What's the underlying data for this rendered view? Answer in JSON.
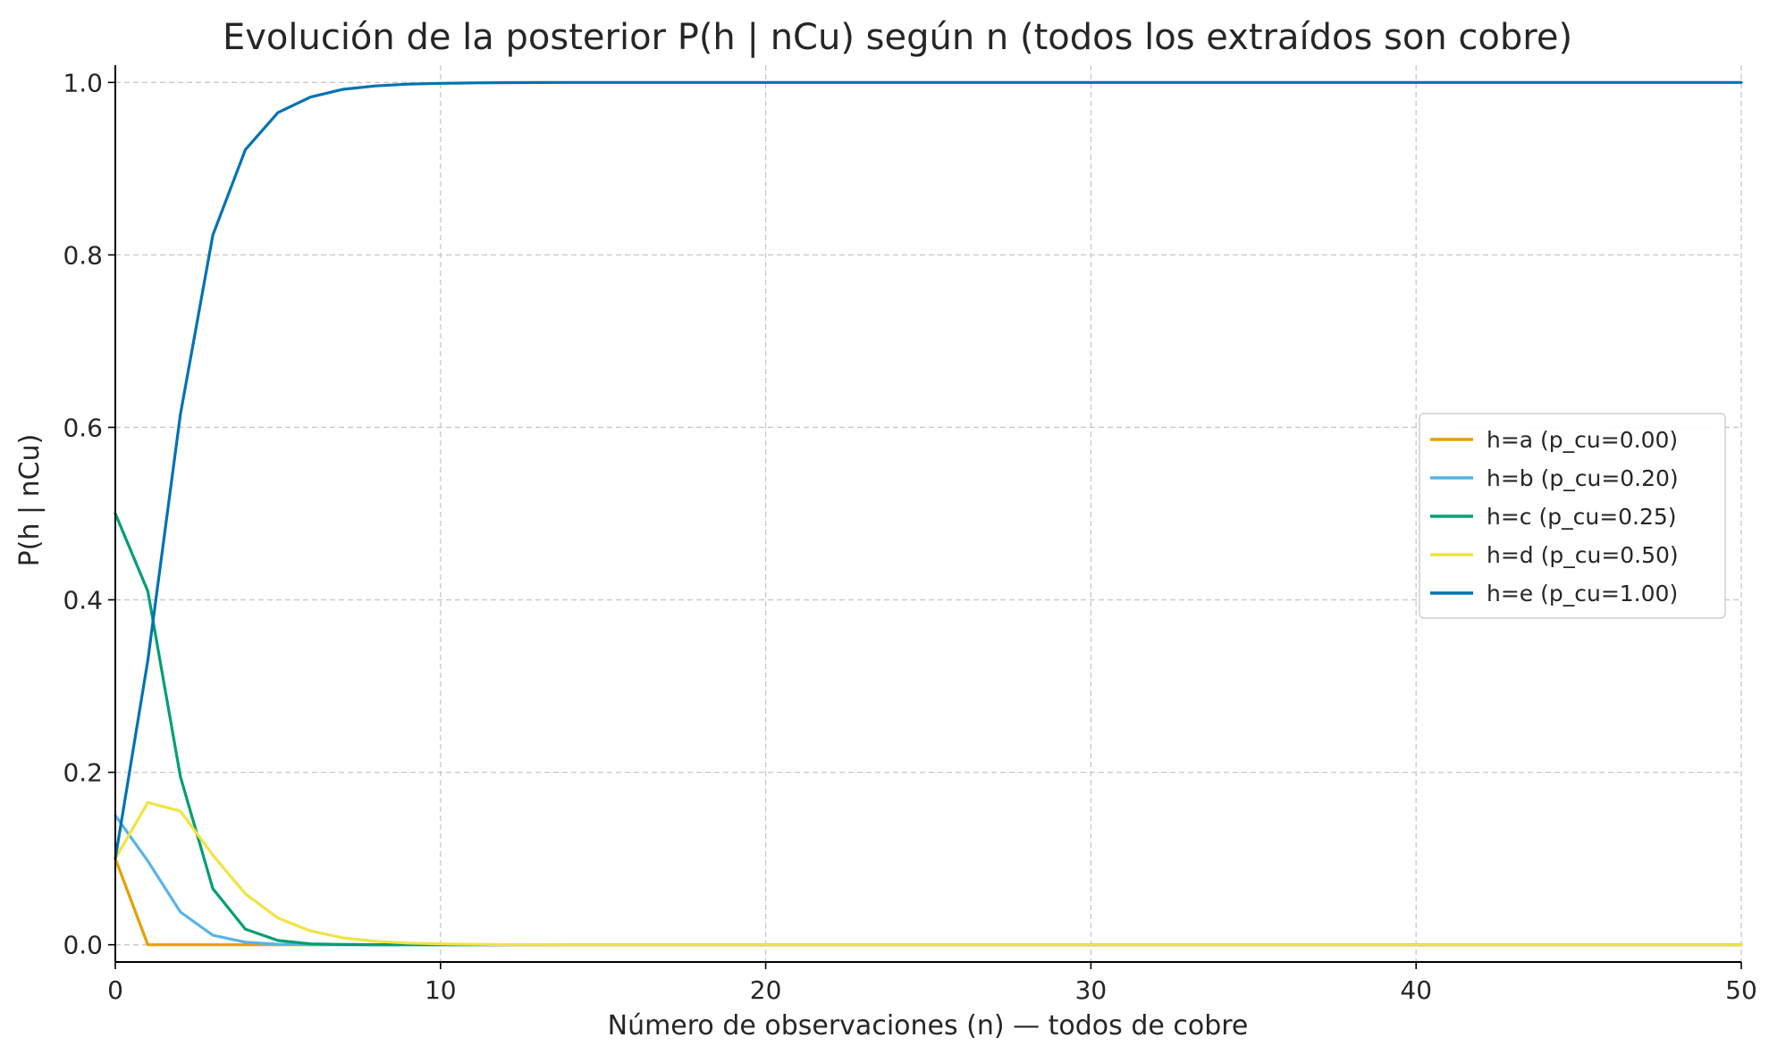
{
  "chart_data": {
    "type": "line",
    "title": "Evolución de la posterior P(h | nCu) según n (todos los extraídos son cobre)",
    "xlabel": "Número de observaciones (n) — todos de cobre",
    "ylabel": "P(h | nCu)",
    "xlim": [
      0,
      50
    ],
    "ylim": [
      -0.02,
      1.02
    ],
    "xticks": [
      0,
      10,
      20,
      30,
      40,
      50
    ],
    "yticks": [
      0.0,
      0.2,
      0.4,
      0.6,
      0.8,
      1.0
    ],
    "xtick_labels": [
      "0",
      "10",
      "20",
      "30",
      "40",
      "50"
    ],
    "ytick_labels": [
      "0.0",
      "0.2",
      "0.4",
      "0.6",
      "0.8",
      "1.0"
    ],
    "grid": true,
    "legend_position": "center-right",
    "x": [
      0,
      1,
      2,
      3,
      4,
      5,
      6,
      7,
      8,
      9,
      10,
      11,
      12,
      13,
      14,
      15,
      16,
      17,
      18,
      19,
      20,
      21,
      22,
      23,
      24,
      25,
      26,
      27,
      28,
      29,
      30,
      31,
      32,
      33,
      34,
      35,
      36,
      37,
      38,
      39,
      40,
      41,
      42,
      43,
      44,
      45,
      46,
      47,
      48,
      49,
      50
    ],
    "series": [
      {
        "name": "h=a (p_cu=0.00)",
        "color": "#e69f00",
        "values": [
          0.1,
          0,
          0,
          0,
          0,
          0,
          0,
          0,
          0,
          0,
          0,
          0,
          0,
          0,
          0,
          0,
          0,
          0,
          0,
          0,
          0,
          0,
          0,
          0,
          0,
          0,
          0,
          0,
          0,
          0,
          0,
          0,
          0,
          0,
          0,
          0,
          0,
          0,
          0,
          0,
          0,
          0,
          0,
          0,
          0,
          0,
          0,
          0,
          0,
          0,
          0
        ]
      },
      {
        "name": "h=b (p_cu=0.20)",
        "color": "#56b4e9",
        "values": [
          0.15,
          0.097,
          0.038,
          0.011,
          0.003,
          0.0006,
          0.0001,
          0,
          0,
          0,
          0,
          0,
          0,
          0,
          0,
          0,
          0,
          0,
          0,
          0,
          0,
          0,
          0,
          0,
          0,
          0,
          0,
          0,
          0,
          0,
          0,
          0,
          0,
          0,
          0,
          0,
          0,
          0,
          0,
          0,
          0,
          0,
          0,
          0,
          0,
          0,
          0,
          0,
          0,
          0,
          0
        ]
      },
      {
        "name": "h=c (p_cu=0.25)",
        "color": "#009e73",
        "values": [
          0.5,
          0.41,
          0.195,
          0.065,
          0.018,
          0.005,
          0.001,
          0.0003,
          0.0001,
          0,
          0,
          0,
          0,
          0,
          0,
          0,
          0,
          0,
          0,
          0,
          0,
          0,
          0,
          0,
          0,
          0,
          0,
          0,
          0,
          0,
          0,
          0,
          0,
          0,
          0,
          0,
          0,
          0,
          0,
          0,
          0,
          0,
          0,
          0,
          0,
          0,
          0,
          0,
          0,
          0,
          0
        ]
      },
      {
        "name": "h=d (p_cu=0.50)",
        "color": "#f0e442",
        "values": [
          0.1,
          0.165,
          0.155,
          0.104,
          0.059,
          0.031,
          0.016,
          0.008,
          0.004,
          0.002,
          0.001,
          0.0005,
          0.0002,
          0.0001,
          0,
          0,
          0,
          0,
          0,
          0,
          0,
          0,
          0,
          0,
          0,
          0,
          0,
          0,
          0,
          0,
          0,
          0,
          0,
          0,
          0,
          0,
          0,
          0,
          0,
          0,
          0,
          0,
          0,
          0,
          0,
          0,
          0,
          0,
          0,
          0,
          0
        ]
      },
      {
        "name": "h=e (p_cu=1.00)",
        "color": "#0072b2",
        "values": [
          0.1,
          0.33,
          0.615,
          0.823,
          0.922,
          0.965,
          0.983,
          0.992,
          0.996,
          0.998,
          0.999,
          0.9995,
          0.9998,
          0.9999,
          1,
          1,
          1,
          1,
          1,
          1,
          1,
          1,
          1,
          1,
          1,
          1,
          1,
          1,
          1,
          1,
          1,
          1,
          1,
          1,
          1,
          1,
          1,
          1,
          1,
          1,
          1,
          1,
          1,
          1,
          1,
          1,
          1,
          1,
          1,
          1,
          1
        ]
      }
    ]
  }
}
